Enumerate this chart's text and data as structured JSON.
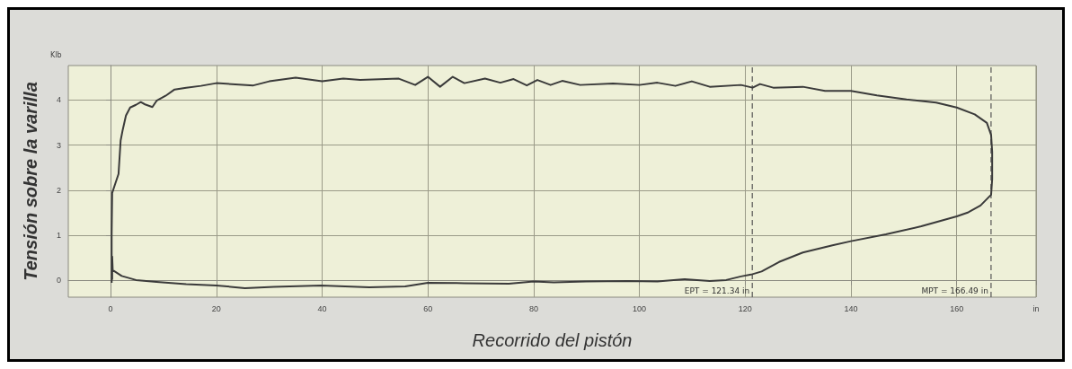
{
  "chart_data": {
    "type": "line",
    "xlabel": "Recorrido del pistón",
    "ylabel": "Tensión sobre la varilla",
    "annotations": [
      "Klb"
    ],
    "xlim": [
      -8,
      175
    ],
    "ylim": [
      -0.37,
      4.76
    ],
    "xticks": [
      0,
      20,
      40,
      60,
      80,
      100,
      120,
      140,
      160,
      {
        "value": 175,
        "label": "in"
      }
    ],
    "yticks": [
      0,
      1,
      2,
      3,
      4
    ],
    "grid": true,
    "marker": "none",
    "line_style": "solid",
    "ref_lines": [
      {
        "axis": "x",
        "value": 121.34,
        "label": "EPT = 121.34 in",
        "color": "#555555",
        "line_style": "dashed"
      },
      {
        "axis": "x",
        "value": 166.49,
        "label": "MPT = 166.49 in",
        "color": "#555555",
        "line_style": "dashed"
      }
    ],
    "series": [
      {
        "color": "#3a3a3a",
        "x": [
          0.2,
          0.2,
          0.3,
          0.9,
          1.5,
          1.9,
          2.3,
          2.9,
          3.7,
          4.8,
          5.7,
          6.5,
          7.9,
          8.7,
          10.4,
          12.1,
          14.3,
          17.1,
          20,
          27,
          30,
          35,
          40,
          44,
          47.2,
          54.5,
          57.6,
          60,
          62.3,
          64.7,
          66.9,
          70.8,
          73.7,
          76.2,
          78.7,
          80.7,
          83.2,
          85.4,
          88.8,
          95,
          100,
          103.4,
          106.8,
          109.9,
          113.3,
          119.2,
          121.4,
          122.8,
          125.3,
          130.9,
          135.1,
          140,
          144.9,
          150.5,
          156.1,
          160,
          163.4,
          165.7,
          166.5,
          166.7,
          166.7,
          166.5,
          164.5,
          162.2,
          160,
          153.3,
          146.6,
          140,
          136.5,
          130.9,
          126.4,
          123.1,
          121.1,
          119.2,
          116.4,
          113.3,
          108.5,
          103.4,
          97.8,
          89.9,
          83.8,
          80,
          75.3,
          66.9,
          60,
          55.7,
          48.9,
          39.8,
          30.9,
          25.4,
          20,
          14.3,
          8.7,
          4.8,
          2.1,
          0.4,
          0.3,
          0.3
        ],
        "values": [
          -0.05,
          1.02,
          1.94,
          2.15,
          2.36,
          3.1,
          3.34,
          3.65,
          3.83,
          3.89,
          3.95,
          3.9,
          3.84,
          3.98,
          4.09,
          4.23,
          4.27,
          4.31,
          4.37,
          4.32,
          4.41,
          4.49,
          4.41,
          4.47,
          4.44,
          4.47,
          4.33,
          4.51,
          4.29,
          4.51,
          4.37,
          4.47,
          4.38,
          4.46,
          4.32,
          4.44,
          4.33,
          4.42,
          4.33,
          4.36,
          4.33,
          4.38,
          4.31,
          4.41,
          4.29,
          4.33,
          4.27,
          4.35,
          4.27,
          4.29,
          4.2,
          4.2,
          4.1,
          4.01,
          3.94,
          3.83,
          3.68,
          3.49,
          3.22,
          2.85,
          2.24,
          1.9,
          1.66,
          1.51,
          1.42,
          1.2,
          1.02,
          0.87,
          0.78,
          0.62,
          0.41,
          0.2,
          0.13,
          0.09,
          0.01,
          -0.01,
          0.03,
          -0.02,
          -0.01,
          -0.02,
          -0.04,
          -0.02,
          -0.07,
          -0.06,
          -0.05,
          -0.13,
          -0.15,
          -0.11,
          -0.14,
          -0.17,
          -0.11,
          -0.08,
          -0.03,
          0.01,
          0.1,
          0.23,
          0.53,
          0.02
        ]
      }
    ]
  }
}
